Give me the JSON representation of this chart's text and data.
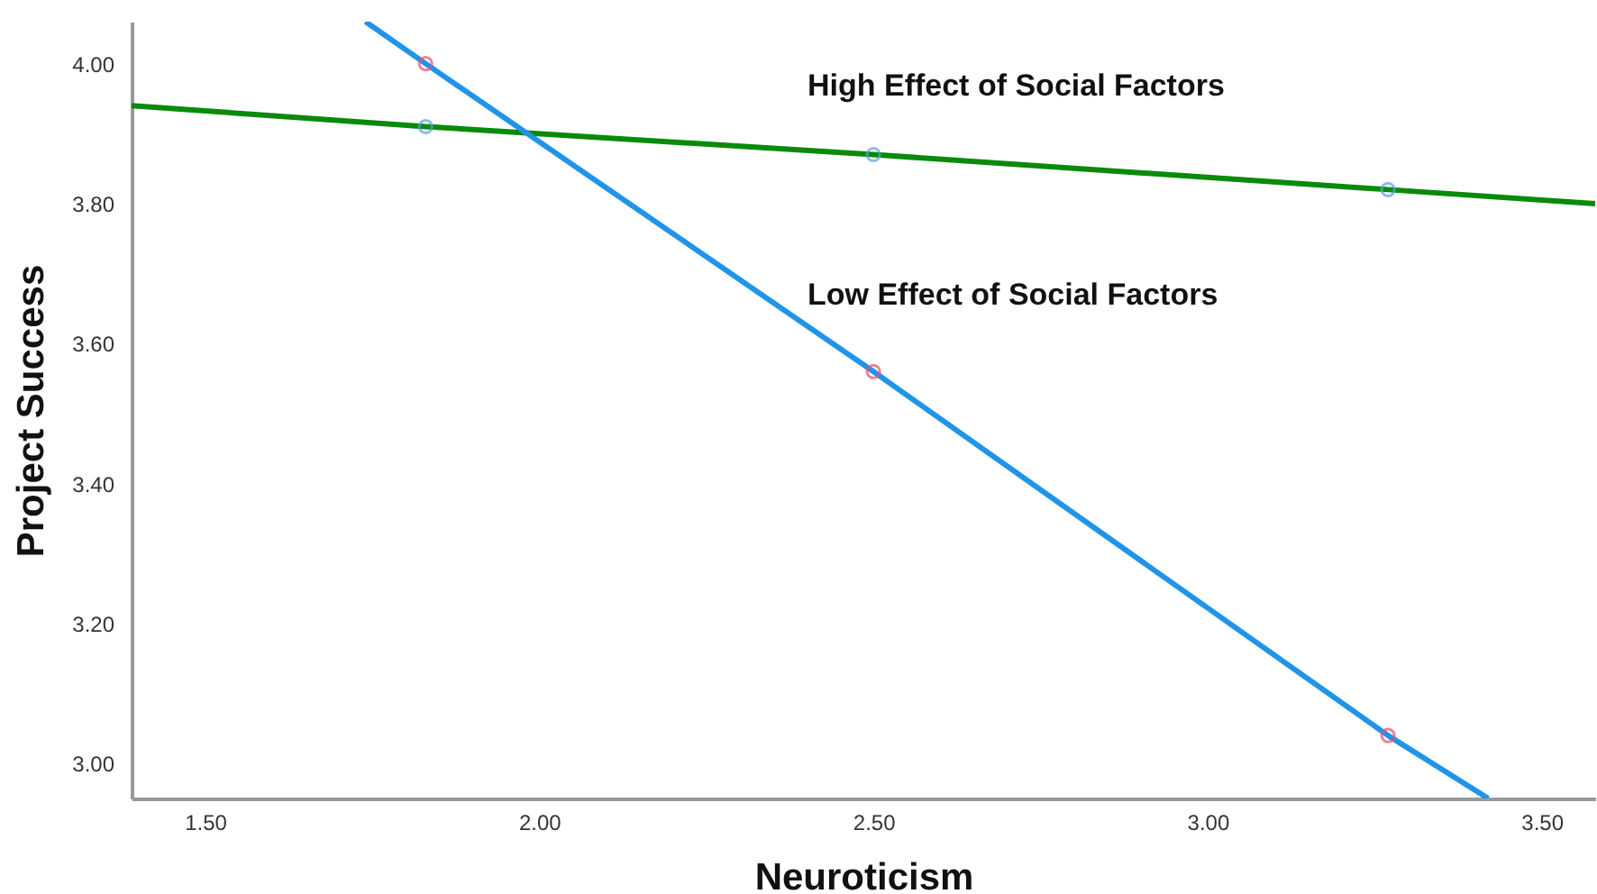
{
  "chart_data": {
    "type": "line",
    "xlabel": "Neuroticism",
    "ylabel": "Project Success",
    "xlim": [
      1.39,
      3.58
    ],
    "ylim": [
      2.95,
      4.06
    ],
    "xticks": [
      {
        "value": 1.5,
        "label": "1.50"
      },
      {
        "value": 2.0,
        "label": "2.00"
      },
      {
        "value": 2.5,
        "label": "2.50"
      },
      {
        "value": 3.0,
        "label": "3.00"
      },
      {
        "value": 3.5,
        "label": "3.50"
      }
    ],
    "yticks": [
      {
        "value": 3.0,
        "label": "3.00"
      },
      {
        "value": 3.2,
        "label": "3.20"
      },
      {
        "value": 3.4,
        "label": "3.40"
      },
      {
        "value": 3.6,
        "label": "3.60"
      },
      {
        "value": 3.8,
        "label": "3.80"
      },
      {
        "value": 4.0,
        "label": "4.00"
      }
    ],
    "grid": false,
    "series": [
      {
        "color": "#0a8a0a",
        "x": [
          1.39,
          1.83,
          2.5,
          3.27,
          3.58
        ],
        "values": [
          3.94,
          3.91,
          3.87,
          3.82,
          3.8
        ]
      },
      {
        "color": "#1f94e8",
        "x": [
          1.74,
          1.83,
          2.5,
          3.27,
          3.42
        ],
        "values": [
          4.06,
          4.0,
          3.56,
          3.04,
          2.95
        ]
      },
      {
        "type": "scatter",
        "marker": "circle",
        "color": "#5aa0e0",
        "x": [
          1.83,
          2.5,
          3.27
        ],
        "values": [
          3.91,
          3.87,
          3.82
        ]
      },
      {
        "type": "scatter",
        "marker": "circle",
        "color": "#e8506e",
        "x": [
          1.83,
          2.5,
          3.27
        ],
        "values": [
          4.0,
          3.56,
          3.04
        ]
      }
    ],
    "annotations": [
      "High Effect of Social Factors",
      "Low Effect of Social Factors"
    ]
  }
}
